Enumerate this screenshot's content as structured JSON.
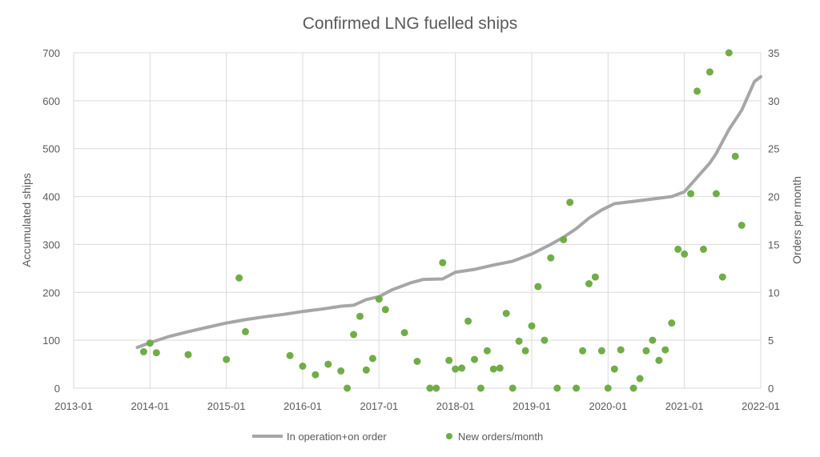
{
  "chart_data": {
    "type": "line",
    "title": "Confirmed LNG fuelled ships",
    "xlabel": "",
    "ylabel": "Accumulated ships",
    "y2label": "Orders per month",
    "x_ticks": [
      "2013-01",
      "2014-01",
      "2015-01",
      "2016-01",
      "2017-01",
      "2018-01",
      "2019-01",
      "2020-01",
      "2021-01",
      "2022-01"
    ],
    "xlim": [
      "2013-01",
      "2022-01"
    ],
    "ylim": [
      0,
      700
    ],
    "y_ticks": [
      0,
      100,
      200,
      300,
      400,
      500,
      600,
      700
    ],
    "y2lim": [
      0,
      35
    ],
    "y2_ticks": [
      0,
      5,
      10,
      15,
      20,
      25,
      30,
      35
    ],
    "grid": true,
    "legend_position": "bottom",
    "series": [
      {
        "name": "In operation+on order",
        "axis": "left",
        "style": "line",
        "color": "#a6a6a6",
        "points": [
          [
            "2013-11",
            85
          ],
          [
            "2014-01",
            95
          ],
          [
            "2014-04",
            108
          ],
          [
            "2014-07",
            118
          ],
          [
            "2014-10",
            127
          ],
          [
            "2015-01",
            136
          ],
          [
            "2015-04",
            143
          ],
          [
            "2015-07",
            149
          ],
          [
            "2015-10",
            154
          ],
          [
            "2016-01",
            160
          ],
          [
            "2016-04",
            165
          ],
          [
            "2016-07",
            171
          ],
          [
            "2016-09",
            173
          ],
          [
            "2016-11",
            185
          ],
          [
            "2017-01",
            191
          ],
          [
            "2017-03",
            205
          ],
          [
            "2017-06",
            220
          ],
          [
            "2017-08",
            227
          ],
          [
            "2017-11",
            228
          ],
          [
            "2018-01",
            242
          ],
          [
            "2018-04",
            248
          ],
          [
            "2018-07",
            257
          ],
          [
            "2018-10",
            265
          ],
          [
            "2019-01",
            280
          ],
          [
            "2019-04",
            300
          ],
          [
            "2019-06",
            315
          ],
          [
            "2019-08",
            333
          ],
          [
            "2019-10",
            355
          ],
          [
            "2019-12",
            372
          ],
          [
            "2020-02",
            385
          ],
          [
            "2020-05",
            390
          ],
          [
            "2020-08",
            395
          ],
          [
            "2020-11",
            400
          ],
          [
            "2021-01",
            410
          ],
          [
            "2021-03",
            440
          ],
          [
            "2021-05",
            470
          ],
          [
            "2021-06",
            490
          ],
          [
            "2021-08",
            540
          ],
          [
            "2021-10",
            580
          ],
          [
            "2021-12",
            640
          ],
          [
            "2022-01",
            650
          ]
        ]
      },
      {
        "name": "New orders/month",
        "axis": "right",
        "style": "scatter",
        "color": "#70ad47",
        "points": [
          [
            "2013-12",
            3.8
          ],
          [
            "2014-01",
            4.7
          ],
          [
            "2014-02",
            3.7
          ],
          [
            "2014-07",
            3.5
          ],
          [
            "2015-01",
            3.0
          ],
          [
            "2015-03",
            11.5
          ],
          [
            "2015-04",
            5.9
          ],
          [
            "2015-11",
            3.4
          ],
          [
            "2016-01",
            2.3
          ],
          [
            "2016-03",
            1.4
          ],
          [
            "2016-05",
            2.5
          ],
          [
            "2016-07",
            1.8
          ],
          [
            "2016-08",
            0.0
          ],
          [
            "2016-09",
            5.6
          ],
          [
            "2016-10",
            7.5
          ],
          [
            "2016-11",
            1.9
          ],
          [
            "2016-12",
            3.1
          ],
          [
            "2017-01",
            9.3
          ],
          [
            "2017-02",
            8.2
          ],
          [
            "2017-05",
            5.8
          ],
          [
            "2017-07",
            2.8
          ],
          [
            "2017-09",
            0.0
          ],
          [
            "2017-10",
            0.0
          ],
          [
            "2017-11",
            13.1
          ],
          [
            "2017-12",
            2.9
          ],
          [
            "2018-01",
            2.0
          ],
          [
            "2018-02",
            2.1
          ],
          [
            "2018-03",
            7.0
          ],
          [
            "2018-04",
            3.0
          ],
          [
            "2018-05",
            0.0
          ],
          [
            "2018-06",
            3.9
          ],
          [
            "2018-07",
            2.0
          ],
          [
            "2018-08",
            2.1
          ],
          [
            "2018-09",
            7.8
          ],
          [
            "2018-10",
            0.0
          ],
          [
            "2018-11",
            4.9
          ],
          [
            "2018-12",
            3.9
          ],
          [
            "2019-01",
            6.5
          ],
          [
            "2019-02",
            10.6
          ],
          [
            "2019-03",
            5.0
          ],
          [
            "2019-04",
            13.6
          ],
          [
            "2019-05",
            0.0
          ],
          [
            "2019-06",
            15.5
          ],
          [
            "2019-07",
            19.4
          ],
          [
            "2019-08",
            0.0
          ],
          [
            "2019-09",
            3.9
          ],
          [
            "2019-10",
            10.9
          ],
          [
            "2019-11",
            11.6
          ],
          [
            "2019-12",
            3.9
          ],
          [
            "2020-01",
            0.0
          ],
          [
            "2020-02",
            2.0
          ],
          [
            "2020-03",
            4.0
          ],
          [
            "2020-05",
            0.0
          ],
          [
            "2020-06",
            1.0
          ],
          [
            "2020-07",
            3.9
          ],
          [
            "2020-08",
            5.0
          ],
          [
            "2020-09",
            2.9
          ],
          [
            "2020-10",
            4.0
          ],
          [
            "2020-11",
            6.8
          ],
          [
            "2020-12",
            14.5
          ],
          [
            "2021-01",
            14.0
          ],
          [
            "2021-02",
            20.3
          ],
          [
            "2021-03",
            31.0
          ],
          [
            "2021-04",
            14.5
          ],
          [
            "2021-05",
            33.0
          ],
          [
            "2021-06",
            20.3
          ],
          [
            "2021-07",
            11.6
          ],
          [
            "2021-08",
            35.0
          ],
          [
            "2021-09",
            24.2
          ],
          [
            "2021-10",
            17.0
          ]
        ]
      }
    ]
  }
}
